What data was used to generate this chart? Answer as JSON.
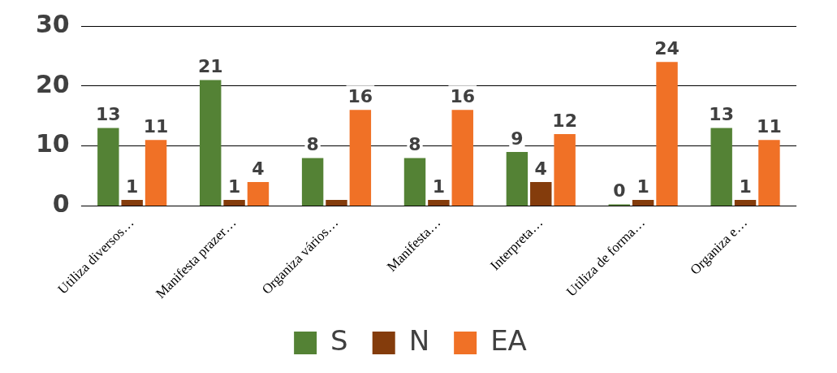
{
  "chart_data": {
    "type": "bar",
    "categories": [
      "Utiliza diversos…",
      "Manifesta prazer…",
      "Organiza vários…",
      "Manifesta…",
      "Interpreta…",
      "Utiliza de forma…",
      "Organiza e…"
    ],
    "series": [
      {
        "name": "S",
        "color": "#548235",
        "values": [
          13,
          21,
          8,
          8,
          9,
          0,
          13
        ],
        "value_labels": [
          "13",
          "21",
          "8",
          "8",
          "9",
          "0",
          "13"
        ]
      },
      {
        "name": "N",
        "color": "#843c0c",
        "values": [
          1,
          1,
          1,
          1,
          4,
          1,
          1
        ],
        "value_labels": [
          "1",
          "1",
          null,
          "1",
          "4",
          "1",
          "1"
        ]
      },
      {
        "name": "EA",
        "color": "#f07126",
        "values": [
          11,
          4,
          16,
          16,
          12,
          24,
          11
        ],
        "value_labels": [
          "11",
          "4",
          "16",
          "16",
          "12",
          "24",
          "11"
        ]
      }
    ],
    "ylim": [
      0,
      30
    ],
    "yticks": [
      0,
      10,
      20,
      30
    ],
    "grid": "y",
    "legend": "bottom"
  }
}
